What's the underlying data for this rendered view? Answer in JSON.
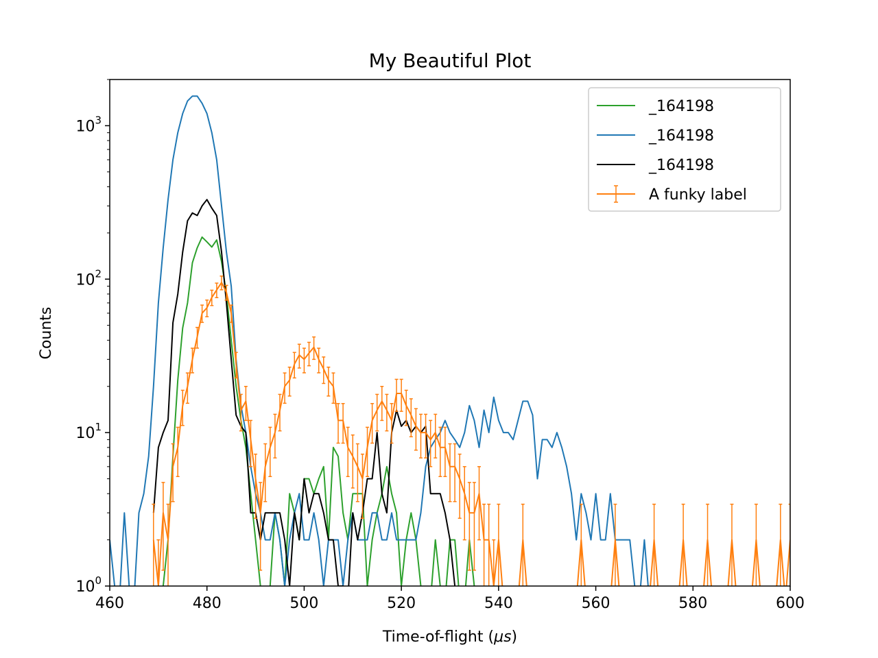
{
  "chart_data": {
    "type": "line",
    "title": "My Beautiful Plot",
    "xlabel_prefix": "Time-of-flight (",
    "xlabel_unit": "μs",
    "xlabel_suffix": ")",
    "ylabel": "Counts",
    "xlim": [
      460,
      600
    ],
    "ylim": [
      1,
      2000
    ],
    "yscale": "log",
    "x_ticks": [
      "460",
      "480",
      "500",
      "520",
      "540",
      "560",
      "580",
      "600"
    ],
    "y_ticks": [
      {
        "base": "10",
        "exp": "0"
      },
      {
        "base": "10",
        "exp": "1"
      },
      {
        "base": "10",
        "exp": "2"
      },
      {
        "base": "10",
        "exp": "3"
      }
    ],
    "legend_position": "upper-right",
    "series": [
      {
        "name": "_164198",
        "color": "#2ca02c",
        "style": "step-line",
        "points": [
          [
            471,
            1
          ],
          [
            472,
            2
          ],
          [
            473,
            7
          ],
          [
            474,
            22
          ],
          [
            475,
            48
          ],
          [
            476,
            70
          ],
          [
            477,
            128
          ],
          [
            478,
            160
          ],
          [
            479,
            188
          ],
          [
            480,
            175
          ],
          [
            481,
            162
          ],
          [
            482,
            180
          ],
          [
            483,
            130
          ],
          [
            484,
            80
          ],
          [
            485,
            40
          ],
          [
            486,
            20
          ],
          [
            487,
            12
          ],
          [
            488,
            8
          ],
          [
            489,
            4
          ],
          [
            490,
            2
          ],
          [
            491,
            1
          ],
          [
            493,
            1
          ],
          [
            494,
            3
          ],
          [
            495,
            2
          ],
          [
            496,
            1
          ],
          [
            497,
            4
          ],
          [
            498,
            3
          ],
          [
            499,
            2
          ],
          [
            500,
            5
          ],
          [
            501,
            5
          ],
          [
            502,
            4
          ],
          [
            503,
            5
          ],
          [
            504,
            6
          ],
          [
            505,
            2
          ],
          [
            506,
            8
          ],
          [
            507,
            7
          ],
          [
            508,
            3
          ],
          [
            509,
            2
          ],
          [
            510,
            4
          ],
          [
            511,
            4
          ],
          [
            512,
            4
          ],
          [
            513,
            1
          ],
          [
            514,
            2
          ],
          [
            515,
            3
          ],
          [
            516,
            4
          ],
          [
            517,
            6
          ],
          [
            518,
            4
          ],
          [
            519,
            3
          ],
          [
            520,
            1
          ],
          [
            521,
            2
          ],
          [
            522,
            3
          ],
          [
            523,
            2
          ],
          [
            524,
            1
          ],
          [
            527,
            2
          ],
          [
            528,
            1
          ],
          [
            530,
            2
          ],
          [
            531,
            2
          ],
          [
            534,
            2
          ],
          [
            535,
            1
          ]
        ]
      },
      {
        "name": "_164198",
        "color": "#1f77b4",
        "style": "step-line",
        "points": [
          [
            460,
            2
          ],
          [
            461,
            1
          ],
          [
            463,
            3
          ],
          [
            464,
            1
          ],
          [
            466,
            3
          ],
          [
            467,
            4
          ],
          [
            468,
            7
          ],
          [
            469,
            20
          ],
          [
            470,
            70
          ],
          [
            471,
            160
          ],
          [
            472,
            330
          ],
          [
            473,
            600
          ],
          [
            474,
            900
          ],
          [
            475,
            1200
          ],
          [
            476,
            1450
          ],
          [
            477,
            1560
          ],
          [
            478,
            1560
          ],
          [
            479,
            1400
          ],
          [
            480,
            1200
          ],
          [
            481,
            900
          ],
          [
            482,
            600
          ],
          [
            483,
            300
          ],
          [
            484,
            150
          ],
          [
            485,
            90
          ],
          [
            486,
            30
          ],
          [
            487,
            15
          ],
          [
            488,
            10
          ],
          [
            489,
            6
          ],
          [
            490,
            4
          ],
          [
            491,
            3
          ],
          [
            492,
            2
          ],
          [
            493,
            2
          ],
          [
            494,
            3
          ],
          [
            495,
            2
          ],
          [
            496,
            1
          ],
          [
            497,
            2
          ],
          [
            498,
            3
          ],
          [
            499,
            4
          ],
          [
            500,
            2
          ],
          [
            501,
            2
          ],
          [
            502,
            3
          ],
          [
            503,
            2
          ],
          [
            504,
            1
          ],
          [
            505,
            2
          ],
          [
            506,
            2
          ],
          [
            507,
            2
          ],
          [
            508,
            1
          ],
          [
            509,
            2
          ],
          [
            510,
            3
          ],
          [
            511,
            2
          ],
          [
            512,
            2
          ],
          [
            513,
            2
          ],
          [
            514,
            3
          ],
          [
            515,
            3
          ],
          [
            516,
            2
          ],
          [
            517,
            2
          ],
          [
            518,
            3
          ],
          [
            519,
            2
          ],
          [
            520,
            2
          ],
          [
            521,
            2
          ],
          [
            522,
            2
          ],
          [
            523,
            2
          ],
          [
            524,
            3
          ],
          [
            525,
            6
          ],
          [
            526,
            8
          ],
          [
            527,
            9
          ],
          [
            528,
            10
          ],
          [
            529,
            12
          ],
          [
            530,
            10
          ],
          [
            531,
            9
          ],
          [
            532,
            8
          ],
          [
            533,
            10
          ],
          [
            534,
            15
          ],
          [
            535,
            12
          ],
          [
            536,
            8
          ],
          [
            537,
            14
          ],
          [
            538,
            10
          ],
          [
            539,
            17
          ],
          [
            540,
            12
          ],
          [
            541,
            10
          ],
          [
            542,
            10
          ],
          [
            543,
            9
          ],
          [
            544,
            12
          ],
          [
            545,
            16
          ],
          [
            546,
            16
          ],
          [
            547,
            13
          ],
          [
            548,
            5
          ],
          [
            549,
            9
          ],
          [
            550,
            9
          ],
          [
            551,
            8
          ],
          [
            552,
            10
          ],
          [
            553,
            8
          ],
          [
            554,
            6
          ],
          [
            555,
            4
          ],
          [
            556,
            2
          ],
          [
            557,
            4
          ],
          [
            558,
            3
          ],
          [
            559,
            2
          ],
          [
            560,
            4
          ],
          [
            561,
            2
          ],
          [
            562,
            2
          ],
          [
            563,
            4
          ],
          [
            564,
            2
          ],
          [
            565,
            2
          ],
          [
            566,
            2
          ],
          [
            567,
            2
          ],
          [
            568,
            1
          ],
          [
            570,
            2
          ],
          [
            572,
            1
          ]
        ]
      },
      {
        "name": "_164198",
        "color": "#000000",
        "style": "step-line",
        "points": [
          [
            469,
            3
          ],
          [
            470,
            8
          ],
          [
            471,
            10
          ],
          [
            472,
            12
          ],
          [
            473,
            52
          ],
          [
            474,
            80
          ],
          [
            475,
            150
          ],
          [
            476,
            240
          ],
          [
            477,
            270
          ],
          [
            478,
            260
          ],
          [
            479,
            300
          ],
          [
            480,
            330
          ],
          [
            481,
            290
          ],
          [
            482,
            260
          ],
          [
            483,
            150
          ],
          [
            484,
            70
          ],
          [
            485,
            30
          ],
          [
            486,
            13
          ],
          [
            487,
            11
          ],
          [
            488,
            10
          ],
          [
            489,
            3
          ],
          [
            490,
            3
          ],
          [
            491,
            2
          ],
          [
            492,
            3
          ],
          [
            493,
            3
          ],
          [
            494,
            3
          ],
          [
            495,
            3
          ],
          [
            496,
            2
          ],
          [
            497,
            1
          ],
          [
            498,
            3
          ],
          [
            499,
            2
          ],
          [
            500,
            5
          ],
          [
            501,
            3
          ],
          [
            502,
            4
          ],
          [
            503,
            4
          ],
          [
            504,
            3
          ],
          [
            505,
            2
          ],
          [
            506,
            2
          ],
          [
            507,
            1
          ],
          [
            508,
            1
          ],
          [
            510,
            3
          ],
          [
            511,
            2
          ],
          [
            512,
            3
          ],
          [
            513,
            5
          ],
          [
            514,
            5
          ],
          [
            515,
            10
          ],
          [
            516,
            4
          ],
          [
            517,
            3
          ],
          [
            518,
            10
          ],
          [
            519,
            14
          ],
          [
            520,
            11
          ],
          [
            521,
            12
          ],
          [
            522,
            10
          ],
          [
            523,
            11
          ],
          [
            524,
            10
          ],
          [
            525,
            11
          ],
          [
            526,
            4
          ],
          [
            527,
            4
          ],
          [
            528,
            4
          ],
          [
            529,
            3
          ],
          [
            530,
            2
          ],
          [
            531,
            1
          ]
        ]
      },
      {
        "name": "A funky label",
        "color": "#ff7f0e",
        "style": "errorbar",
        "points": [
          [
            469,
            2
          ],
          [
            470,
            1
          ],
          [
            471,
            3
          ],
          [
            472,
            2
          ],
          [
            473,
            6
          ],
          [
            474,
            8
          ],
          [
            475,
            15
          ],
          [
            476,
            20
          ],
          [
            477,
            30
          ],
          [
            478,
            42
          ],
          [
            479,
            60
          ],
          [
            480,
            65
          ],
          [
            481,
            76
          ],
          [
            482,
            85
          ],
          [
            483,
            95
          ],
          [
            484,
            82
          ],
          [
            485,
            60
          ],
          [
            486,
            28
          ],
          [
            487,
            14
          ],
          [
            488,
            16
          ],
          [
            489,
            9
          ],
          [
            490,
            5
          ],
          [
            491,
            3
          ],
          [
            492,
            6
          ],
          [
            493,
            8
          ],
          [
            494,
            10
          ],
          [
            495,
            14
          ],
          [
            496,
            20
          ],
          [
            497,
            22
          ],
          [
            498,
            28
          ],
          [
            499,
            32
          ],
          [
            500,
            30
          ],
          [
            501,
            33
          ],
          [
            502,
            36
          ],
          [
            503,
            30
          ],
          [
            504,
            26
          ],
          [
            505,
            22
          ],
          [
            506,
            20
          ],
          [
            507,
            12
          ],
          [
            508,
            12
          ],
          [
            509,
            8
          ],
          [
            510,
            7
          ],
          [
            511,
            6
          ],
          [
            512,
            5
          ],
          [
            513,
            8
          ],
          [
            514,
            12
          ],
          [
            515,
            14
          ],
          [
            516,
            16
          ],
          [
            517,
            14
          ],
          [
            518,
            12
          ],
          [
            519,
            18
          ],
          [
            520,
            18
          ],
          [
            521,
            15
          ],
          [
            522,
            13
          ],
          [
            523,
            11
          ],
          [
            524,
            10
          ],
          [
            525,
            10
          ],
          [
            526,
            9
          ],
          [
            527,
            10
          ],
          [
            528,
            8
          ],
          [
            529,
            8
          ],
          [
            530,
            6
          ],
          [
            531,
            6
          ],
          [
            532,
            5
          ],
          [
            533,
            4
          ],
          [
            534,
            3
          ],
          [
            535,
            3
          ],
          [
            536,
            4
          ],
          [
            537,
            2
          ],
          [
            538,
            2
          ],
          [
            539,
            1
          ],
          [
            540,
            2
          ],
          [
            545,
            2
          ],
          [
            557,
            2
          ],
          [
            564,
            2
          ],
          [
            572,
            2
          ],
          [
            578,
            2
          ],
          [
            583,
            2
          ],
          [
            588,
            2
          ],
          [
            593,
            2
          ],
          [
            598,
            2
          ],
          [
            600,
            2
          ]
        ]
      }
    ]
  }
}
